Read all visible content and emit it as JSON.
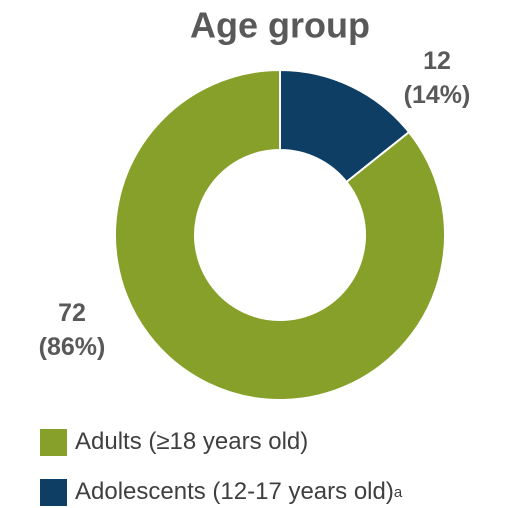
{
  "chart_data": {
    "type": "pie",
    "donut": true,
    "title": "Age group",
    "categories": [
      "Adults (≥18 years old)",
      "Adolescents (12-17 years old)"
    ],
    "category_notes": [
      null,
      "a"
    ],
    "values": [
      72,
      12
    ],
    "value_labels": [
      "72\n(86%)",
      "12\n(14%)"
    ],
    "colors": [
      "#86a02a",
      "#0f3e64"
    ]
  }
}
